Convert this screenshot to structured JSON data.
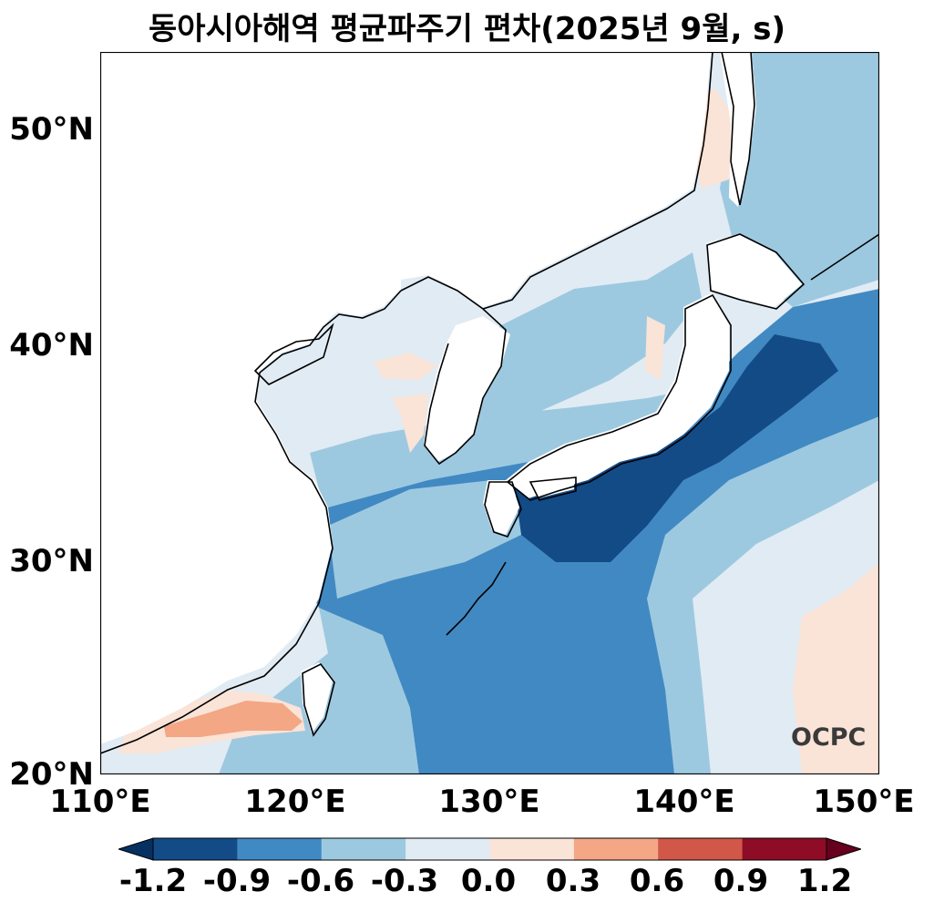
{
  "title": "동아시아해역 평균파주기 편차(2025년 9월, s)",
  "map": {
    "lon_range": [
      110,
      150
    ],
    "lat_range": [
      20,
      53.5
    ],
    "coastline_color": "#000000"
  },
  "axes": {
    "x_ticks": [
      "110°E",
      "120°E",
      "130°E",
      "140°E",
      "150°E"
    ],
    "y_ticks": [
      "50°N",
      "40°N",
      "30°N",
      "20°N"
    ]
  },
  "colorbar": {
    "tick_labels": [
      "-1.2",
      "-0.9",
      "-0.6",
      "-0.3",
      "0.0",
      "0.3",
      "0.6",
      "0.9",
      "1.2"
    ],
    "levels": [
      -1.2,
      -0.9,
      -0.6,
      -0.3,
      0.0,
      0.3,
      0.6,
      0.9,
      1.2
    ],
    "colors": [
      "#134b87",
      "#4189c2",
      "#9dc9e0",
      "#e1ebf3",
      "#fae3d7",
      "#f3a785",
      "#d15748",
      "#8e0c25"
    ],
    "extend_colors": {
      "low": "#053061",
      "high": "#67001f"
    }
  },
  "logo": {
    "text": "OCPC"
  }
}
